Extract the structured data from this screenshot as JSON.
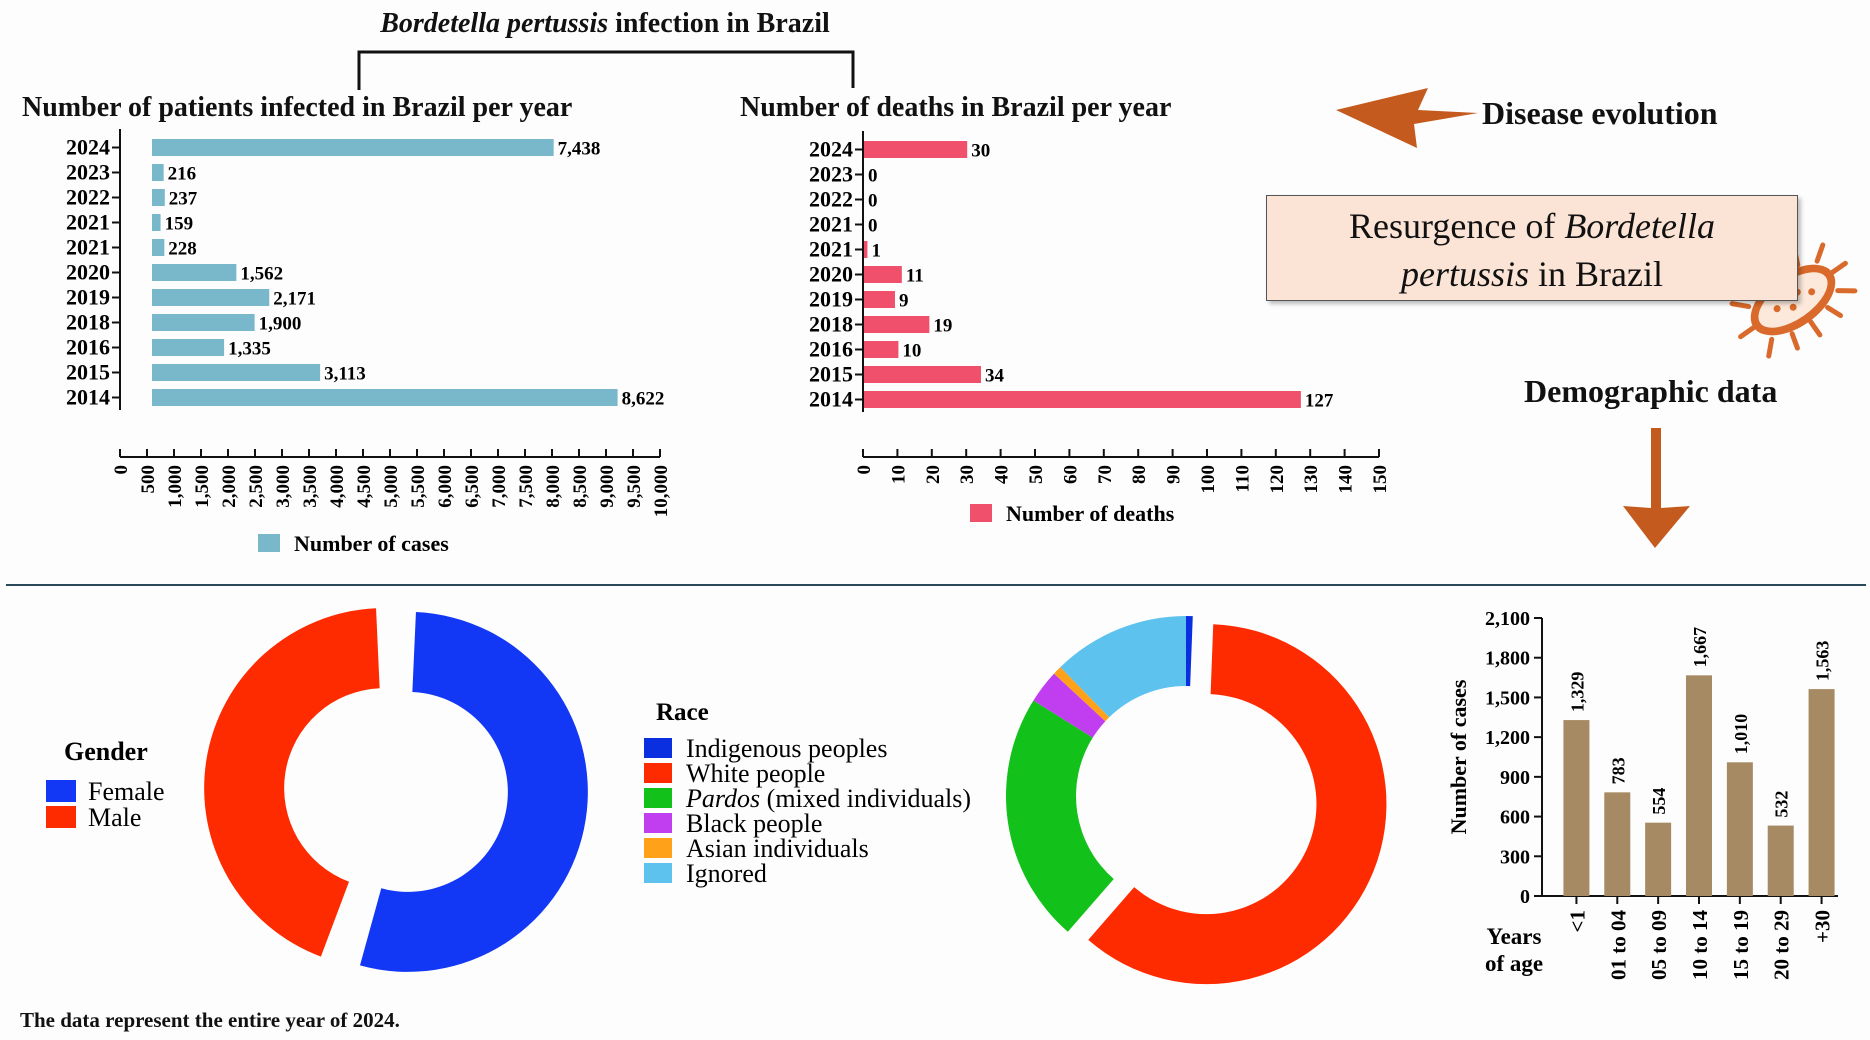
{
  "header": {
    "title_italic": "Bordetella pertussis",
    "title_rest": " infection in Brazil",
    "disease_evolution": "Disease evolution",
    "resurgence_line1_a": "Resurgence of ",
    "resurgence_line1_b": "Bordetella",
    "resurgence_line2_a": "pertussis",
    "resurgence_line2_b": " in Brazil",
    "demographic": "Demographic data",
    "footer": "The data represent the entire year of 2024."
  },
  "colors": {
    "cases_bar": "#79b8cb",
    "deaths_bar": "#f0506b",
    "age_bar": "#a68a64",
    "arrow": "#c55a1e",
    "female": "#1238f5",
    "male": "#ff2b00",
    "indigenous": "#0a2fe0",
    "white": "#ff2b00",
    "pardos": "#12c21a",
    "black": "#c03ef0",
    "asian": "#ffa21a",
    "ignored": "#5ec2ee"
  },
  "chart_data": [
    {
      "type": "bar",
      "orientation": "horizontal",
      "title": "Number of patients infected in Brazil per year",
      "categories": [
        "2024",
        "2023",
        "2022",
        "2021",
        "2021",
        "2020",
        "2019",
        "2018",
        "2016",
        "2015",
        "2014"
      ],
      "values": [
        7438,
        216,
        237,
        159,
        228,
        1562,
        2171,
        1900,
        1335,
        3113,
        8622
      ],
      "value_labels": [
        "7,438",
        "216",
        "237",
        "159",
        "228",
        "1,562",
        "2,171",
        "1,900",
        "1,335",
        "3,113",
        "8,622"
      ],
      "xlim": [
        0,
        10000
      ],
      "ticks": [
        "0",
        "500",
        "1,000",
        "1,500",
        "2,000",
        "2,500",
        "3,000",
        "3,500",
        "4,000",
        "4,500",
        "5,000",
        "5,500",
        "6,000",
        "6,500",
        "7,000",
        "7,500",
        "8,000",
        "8,500",
        "9,000",
        "9,500",
        "10,000"
      ],
      "legend": "Number of cases"
    },
    {
      "type": "bar",
      "orientation": "horizontal",
      "title": "Number of deaths in Brazil per year",
      "categories": [
        "2024",
        "2023",
        "2022",
        "2021",
        "2021",
        "2020",
        "2019",
        "2018",
        "2016",
        "2015",
        "2014"
      ],
      "values": [
        30,
        0,
        0,
        0,
        1,
        11,
        9,
        19,
        10,
        34,
        127
      ],
      "value_labels": [
        "30",
        "0",
        "0",
        "0",
        "1",
        "11",
        "9",
        "19",
        "10",
        "34",
        "127"
      ],
      "xlim": [
        0,
        150
      ],
      "ticks": [
        "0",
        "10",
        "20",
        "30",
        "40",
        "50",
        "60",
        "70",
        "80",
        "90",
        "100",
        "110",
        "120",
        "130",
        "140",
        "150"
      ],
      "legend": "Number of deaths"
    },
    {
      "type": "pie",
      "variant": "donut",
      "legend_title": "Gender",
      "labels": [
        "Female",
        "Male"
      ],
      "values": [
        55,
        45
      ]
    },
    {
      "type": "pie",
      "variant": "donut",
      "legend_title": "Race",
      "labels": [
        "Indigenous peoples",
        "White people",
        "Pardos",
        "Black people",
        "Asian individuals",
        "Ignored"
      ],
      "legend_labels": [
        "Indigenous peoples",
        "White people",
        {
          "italic": "Pardos",
          "rest": " (mixed individuals)"
        },
        "Black people",
        "Asian individuals",
        "Ignored"
      ],
      "values": [
        0.6,
        60.8,
        22.5,
        3.0,
        0.8,
        12.3
      ]
    },
    {
      "type": "bar",
      "orientation": "vertical",
      "categories": [
        "<1",
        "01 to 04",
        "05 to 09",
        "10 to 14",
        "15 to 19",
        "20 to 29",
        "+30"
      ],
      "values": [
        1329,
        783,
        554,
        1667,
        1010,
        532,
        1563
      ],
      "value_labels": [
        "1,329",
        "783",
        "554",
        "1,667",
        "1,010",
        "532",
        "1,563"
      ],
      "ylim": [
        0,
        2100
      ],
      "ticks": [
        "0",
        "300",
        "600",
        "900",
        "1,200",
        "1,500",
        "1,800",
        "2,100"
      ],
      "ylabel": "Number of cases",
      "xlabel_line1": "Years",
      "xlabel_line2": "of age"
    }
  ]
}
